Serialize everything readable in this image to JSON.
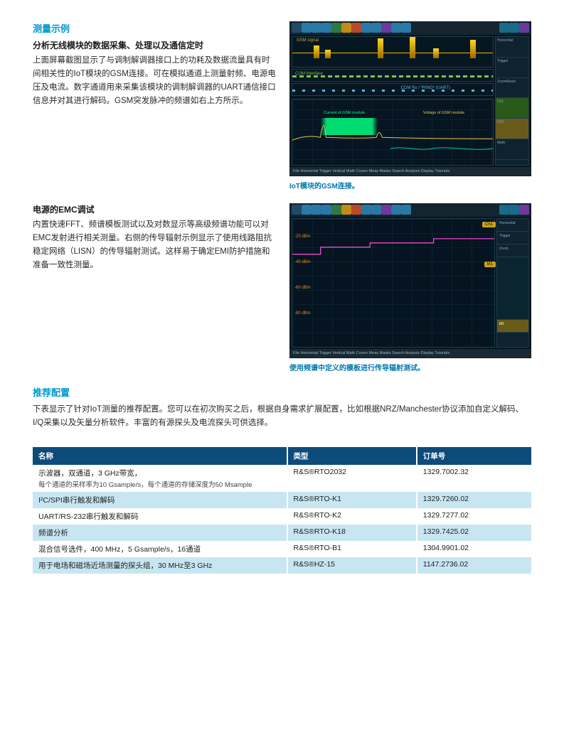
{
  "section1": {
    "title": "测量示例",
    "subtitle": "分析无线模块的数据采集、处理以及通信定时",
    "para": "上面屏幕截图显示了与调制解调器接口上的功耗及数据流量具有时间相关性的IoT模块的GSM连接。可在模拟通道上测量射频、电源电压及电流。数字通道用来采集该模块的调制解调器的UART通信接口信息并对其进行解码。GSM突发脉冲的频谱如右上方所示。",
    "scope": {
      "toolbar_colors": [
        "#204a66",
        "#2a78a6",
        "#2a78a6",
        "#2a78a6",
        "#2f7a40",
        "#c28a1a",
        "#b84a2a",
        "#2a78a6",
        "#2a78a6",
        "#6a3aa0",
        "#2a78a6",
        "#2a78a6"
      ],
      "right_toolbar": [
        "#1a6a8a",
        "#1a6a8a",
        "#6a3a9a"
      ],
      "top_label": "GSM signal",
      "mid1_label": "COM Interface",
      "mid2_label": "COM Rx / *RING* (UART)",
      "green_label": "Current of GSM module",
      "yellow_label": "Voltage of GSM module",
      "peaks_x": [
        30,
        46,
        120,
        165,
        198,
        250
      ],
      "peak_heights": [
        18,
        12,
        28,
        30,
        14,
        26
      ],
      "footer": "File  Horizontal  Trigger  Vertical  Math  Cursor  Meas  Masks  Search  Analysis  Display  Tutorials",
      "caption": "IoT模块的GSM连接。"
    }
  },
  "section2": {
    "subtitle": "电源的EMC调试",
    "para": "内置快速FFT、频谱模板测试以及对数显示等高级频谱功能可以对EMC发射进行相关测量。右侧的传导辐射示例显示了使用线路阻抗稳定网络（LISN）的传导辐射测试。这样易于确定EMI防护措施和准备一致性测量。",
    "scope": {
      "toolbar_colors": [
        "#204a66",
        "#2a78a6",
        "#2a78a6",
        "#2a78a6",
        "#2f7a40",
        "#c28a1a",
        "#b84a2a",
        "#2a78a6",
        "#2a78a6",
        "#6a3aa0",
        "#2a78a6",
        "#2a78a6"
      ],
      "right_toolbar": [
        "#1a6a8a",
        "#1a6a8a",
        "#6a3a9a"
      ],
      "ylabels": [
        "-20 dBm",
        "-40 dBm",
        "-60 dBm",
        "-80 dBm"
      ],
      "spectrum_stops": [
        "#ff3b1f",
        "#ff8a1a",
        "#ffd21a",
        "#7ae63a",
        "#1ad6c8",
        "#1a7ae6"
      ],
      "limit_line": "M0,50 L40,50 L40,40 L110,40 L110,34 L200,34 L200,28 L286,28",
      "footer": "File  Horizontal  Trigger  Vertical  Math  Cursor  Meas  Masks  Search  Analysis  Display  Tutorials",
      "caption": "使用频谱中定义的模板进行传导辐射测试。"
    }
  },
  "config": {
    "title": "推荐配置",
    "intro": "下表显示了针对IoT测量的推荐配置。您可以在初次购买之后，根据自身需求扩展配置，比如根据NRZ/Manchester协议添加自定义解码、I/Q采集以及矢量分析软件。丰富的有源探头及电流探头可供选择。",
    "columns": [
      "名称",
      "类型",
      "订单号"
    ],
    "col_widths": [
      "51%",
      "26%",
      "23%"
    ],
    "rows": [
      {
        "name": "示波器，双通道，3 GHz带宽，",
        "sub": "每个通道的采样率为10 Gsample/s，每个通道的存储深度为50 Msample",
        "type": "R&S®RTO2032",
        "order": "1329.7002.32"
      },
      {
        "name": "I²C/SPI串行触发和解码",
        "sub": "",
        "type": "R&S®RTO-K1",
        "order": "1329.7260.02"
      },
      {
        "name": "UART/RS-232串行触发和解码",
        "sub": "",
        "type": "R&S®RTO-K2",
        "order": "1329.7277.02"
      },
      {
        "name": "频谱分析",
        "sub": "",
        "type": "R&S®RTO-K18",
        "order": "1329.7425.02"
      },
      {
        "name": "混合信号选件，400 MHz，5 Gsample/s，16通道",
        "sub": "",
        "type": "R&S®RTO-B1",
        "order": "1304.9901.02"
      },
      {
        "name": "用于电场和磁场近场测量的探头组，30 MHz至3 GHz",
        "sub": "",
        "type": "R&S®HZ-15",
        "order": "1147.2736.02"
      }
    ]
  }
}
